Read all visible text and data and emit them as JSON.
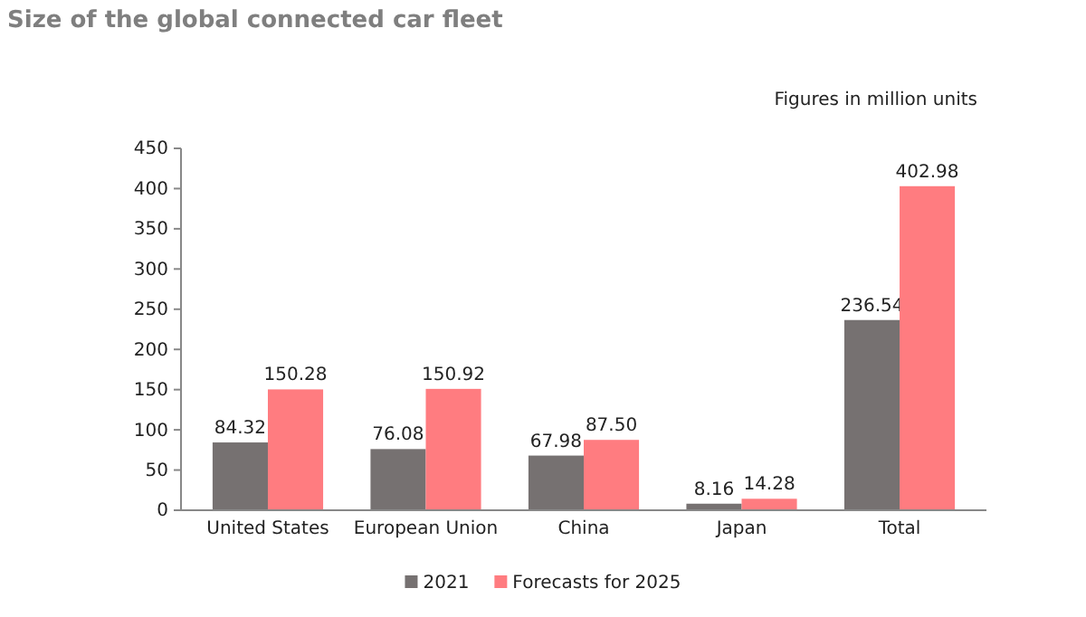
{
  "chart_data": {
    "type": "bar",
    "title": "Size of the global connected car fleet",
    "annotations": [
      "Figures in million units"
    ],
    "categories": [
      "United States",
      "European Union",
      "China",
      "Japan",
      "Total"
    ],
    "series": [
      {
        "name": "2021",
        "color": "#767171",
        "values": [
          84.32,
          76.08,
          67.98,
          8.16,
          236.54
        ],
        "value_labels": [
          "84.32",
          "76.08",
          "67.98",
          "8.16",
          "236.54"
        ]
      },
      {
        "name": "Forecasts for 2025",
        "color": "#ff7c80",
        "values": [
          150.28,
          150.92,
          87.5,
          14.28,
          402.98
        ],
        "value_labels": [
          "150.28",
          "150.92",
          "87.50",
          "14.28",
          "402.98"
        ]
      }
    ],
    "ylim": [
      0,
      450
    ],
    "yticks": [
      0,
      50,
      100,
      150,
      200,
      250,
      300,
      350,
      400,
      450
    ],
    "grid": false,
    "legend": "bottom"
  }
}
